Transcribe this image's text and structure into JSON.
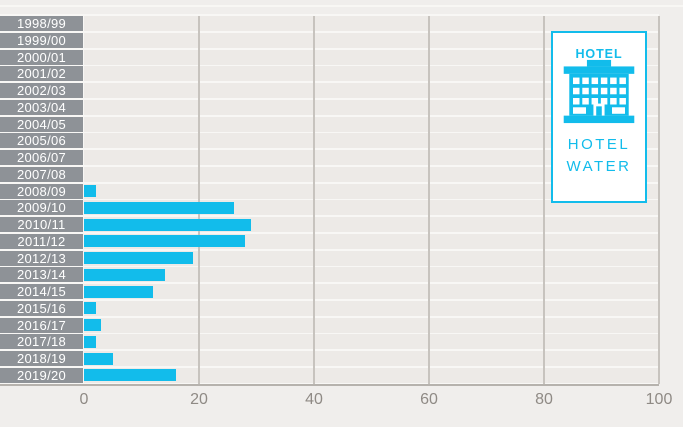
{
  "chart_data": {
    "type": "bar",
    "orientation": "horizontal",
    "title": "",
    "categories": [
      "1998/99",
      "1999/00",
      "2000/01",
      "2001/02",
      "2002/03",
      "2003/04",
      "2004/05",
      "2005/06",
      "2006/07",
      "2007/08",
      "2008/09",
      "2009/10",
      "2010/11",
      "2011/12",
      "2012/13",
      "2013/14",
      "2014/15",
      "2015/16",
      "2016/17",
      "2017/18",
      "2018/19",
      "2019/20"
    ],
    "values": [
      0,
      0,
      0,
      0,
      0,
      0,
      0,
      0,
      0,
      0,
      2,
      26,
      29,
      28,
      19,
      14,
      12,
      2,
      3,
      2,
      5,
      16
    ],
    "xlim": [
      0,
      100
    ],
    "x_ticks": [
      "0",
      "20",
      "40",
      "60",
      "80",
      "100"
    ],
    "grid": "vertical",
    "legend": "none"
  },
  "badge": {
    "sign_text": "HOTEL",
    "label_line1": "HOTEL",
    "label_line2": "WATER"
  },
  "colors": {
    "accent": "#12bceb",
    "background": "#f0eeec",
    "row_band": "#edeae7",
    "row_separator": "#f8f7f5",
    "category_label_bg": "#8e9297",
    "category_label_text": "#ffffff",
    "gridline": "#c7c3be",
    "baseline": "#b6b2ad",
    "tick_label": "#8f8a85"
  }
}
